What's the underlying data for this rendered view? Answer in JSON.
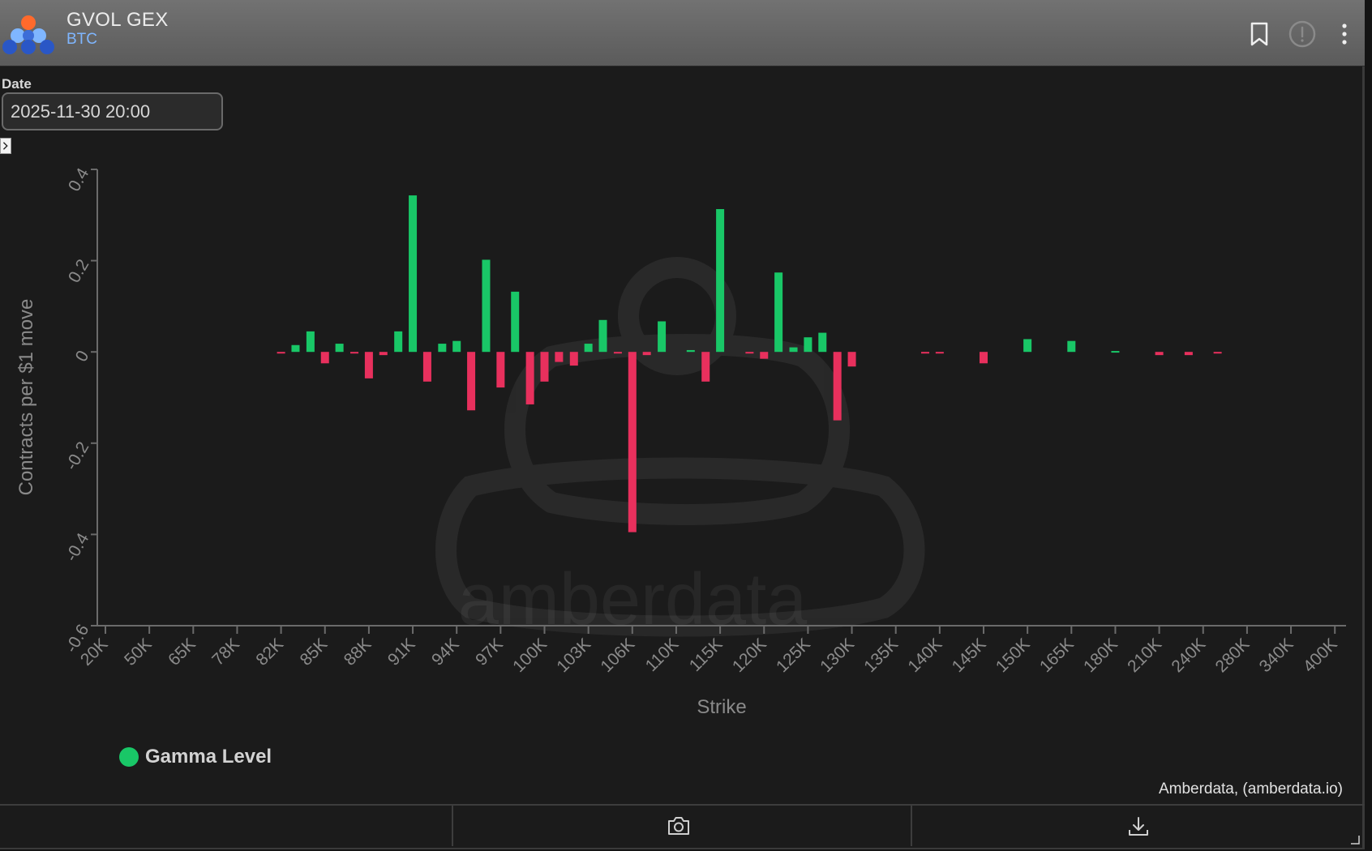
{
  "header": {
    "title": "GVOL GEX",
    "subtitle": "BTC",
    "icons": [
      "bookmark-icon",
      "info-circle-icon",
      "more-vertical-icon"
    ]
  },
  "filters": {
    "date_label": "Date",
    "date_value": "2025-11-30 20:00"
  },
  "colors": {
    "positive": "#19c767",
    "negative": "#e8305d",
    "background": "#1b1b1b",
    "header": "#666666"
  },
  "chart_data": {
    "type": "bar",
    "xlabel": "Strike",
    "ylabel": "Contracts per $1 move",
    "ylim": [
      -0.6,
      0.4
    ],
    "yticks": [
      "0.4",
      "0.2",
      "0",
      "-0.2",
      "-0.4",
      "-0.6"
    ],
    "ytick_values": [
      0.4,
      0.2,
      0,
      -0.2,
      -0.4,
      -0.6
    ],
    "xtick_labels": [
      "20K",
      "50K",
      "65K",
      "78K",
      "82K",
      "85K",
      "88K",
      "91K",
      "94K",
      "97K",
      "100K",
      "103K",
      "106K",
      "110K",
      "115K",
      "120K",
      "125K",
      "130K",
      "135K",
      "140K",
      "145K",
      "150K",
      "165K",
      "180K",
      "210K",
      "240K",
      "280K",
      "340K",
      "400K"
    ],
    "grid": false,
    "legend_position": "bottom-left",
    "series": [
      {
        "name": "Gamma Level",
        "values": [
          -0.003,
          0.015,
          0.045,
          -0.025,
          0.018,
          -0.003,
          -0.058,
          -0.007,
          0.045,
          0.343,
          -0.065,
          0.018,
          0.024,
          -0.128,
          0.202,
          -0.078,
          0.132,
          -0.115,
          -0.065,
          -0.022,
          -0.03,
          0.018,
          0.07,
          -0.003,
          -0.395,
          -0.007,
          0.067,
          0.004,
          -0.065,
          0.313,
          -0.003,
          -0.015,
          0.174,
          0.01,
          0.032,
          0.042,
          -0.15,
          -0.032,
          -0.003,
          -0.003,
          -0.025,
          0.028,
          0.024,
          0.002,
          -0.007,
          -0.007,
          -0.003
        ],
        "strike_positions": [
          4.0,
          4.33,
          4.67,
          5.0,
          5.33,
          5.67,
          6.0,
          6.33,
          6.67,
          7.0,
          7.33,
          7.67,
          8.0,
          8.33,
          8.67,
          9.0,
          9.33,
          9.67,
          10.0,
          10.33,
          10.67,
          11.0,
          11.33,
          11.67,
          12.0,
          12.33,
          12.67,
          13.33,
          13.67,
          14.0,
          14.67,
          15.0,
          15.33,
          15.67,
          16.0,
          16.33,
          16.67,
          17.0,
          18.67,
          19.0,
          20.0,
          21.0,
          22.0,
          23.0,
          24.0,
          24.67,
          25.33
        ]
      }
    ]
  },
  "legend": {
    "label": "Gamma Level"
  },
  "watermark": "amberdata",
  "credit": "Amberdata, (amberdata.io)",
  "footer": {
    "icons": [
      "camera-icon",
      "download-icon",
      "resize-handle-icon"
    ]
  }
}
